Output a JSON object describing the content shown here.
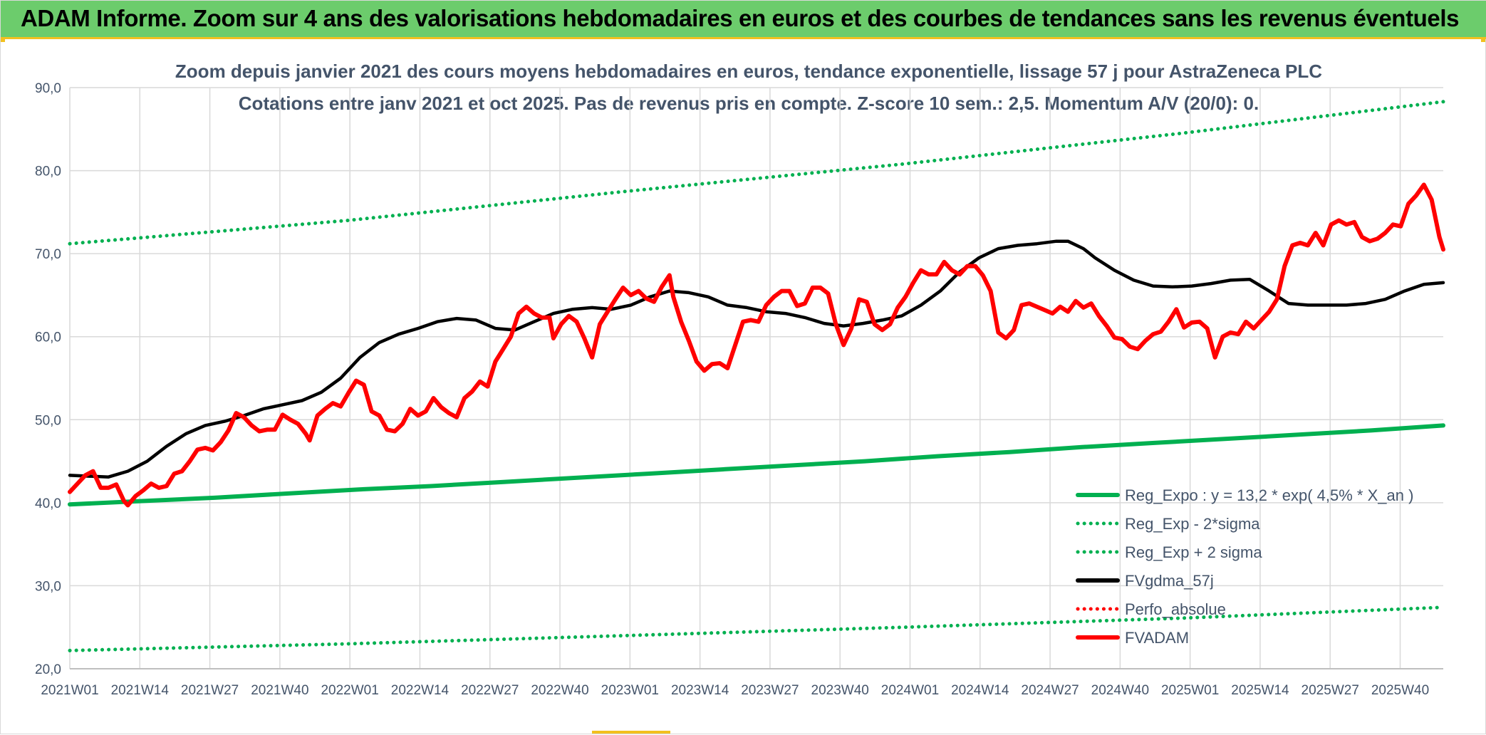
{
  "header": {
    "banner": "ADAM Informe. Zoom sur 4 ans des valorisations hebdomadaires en euros et des courbes de tendances sans les revenus éventuels"
  },
  "colors": {
    "banner_bg": "#6ccc6c",
    "accent": "#f2c01f",
    "trend_green": "#00b050",
    "price_red": "#ff0000",
    "smooth_black": "#000000",
    "text": "#44546a",
    "grid": "#d9d9d9"
  },
  "chart_data": {
    "type": "line",
    "title": "Zoom depuis janvier 2021 des cours moyens hebdomadaires en euros, tendance exponentielle, lissage 57 j pour AstraZeneca PLC",
    "subtitle": "Cotations entre janv 2021 et oct 2025. Pas de revenus pris en compte. Z-score 10 sem.: 2,5. Momentum A/V (20/0): 0.",
    "ylim": [
      20,
      90
    ],
    "ytick_labels": [
      "20,0",
      "30,0",
      "40,0",
      "50,0",
      "60,0",
      "70,0",
      "80,0",
      "90,0"
    ],
    "x_tick_labels": [
      "2021W01",
      "2021W14",
      "2021W27",
      "2021W40",
      "2022W01",
      "2022W14",
      "2022W27",
      "2022W40",
      "2023W01",
      "2023W14",
      "2023W27",
      "2023W40",
      "2024W01",
      "2024W14",
      "2024W27",
      "2024W40",
      "2025W01",
      "2025W14",
      "2025W27",
      "2025W40"
    ],
    "grid": true,
    "legend_position": "bottom-right",
    "series": [
      {
        "name": "Reg_Expo : y = 13,2 * exp( 4,5% *  X_an )",
        "color": "#00b050",
        "style": "solid",
        "knots": [
          [
            0,
            39.8
          ],
          [
            13,
            40.2
          ],
          [
            26,
            40.6
          ],
          [
            39,
            41.1
          ],
          [
            52,
            41.6
          ],
          [
            65,
            42.0
          ],
          [
            78,
            42.5
          ],
          [
            91,
            43.0
          ],
          [
            104,
            43.5
          ],
          [
            117,
            44.0
          ],
          [
            130,
            44.5
          ],
          [
            143,
            45.0
          ],
          [
            156,
            45.6
          ],
          [
            169,
            46.1
          ],
          [
            182,
            46.7
          ],
          [
            195,
            47.2
          ],
          [
            208,
            47.7
          ],
          [
            221,
            48.2
          ],
          [
            234,
            48.7
          ],
          [
            247,
            49.3
          ]
        ]
      },
      {
        "name": "Reg_Exp - 2*sigma",
        "color": "#00b050",
        "style": "dotted",
        "knots": [
          [
            0,
            22.2
          ],
          [
            50,
            23.0
          ],
          [
            100,
            24.0
          ],
          [
            150,
            25.0
          ],
          [
            200,
            26.1
          ],
          [
            247,
            27.4
          ]
        ]
      },
      {
        "name": "Reg_Exp + 2 sigma",
        "color": "#00b050",
        "style": "dotted",
        "knots": [
          [
            0,
            71.2
          ],
          [
            50,
            74.0
          ],
          [
            100,
            77.5
          ],
          [
            150,
            80.8
          ],
          [
            200,
            84.5
          ],
          [
            247,
            88.3
          ]
        ]
      },
      {
        "name": "FVgdma_57j",
        "color": "#000000",
        "style": "solid",
        "knots": [
          [
            0,
            43.3
          ],
          [
            5,
            43.2
          ],
          [
            10,
            43.1
          ],
          [
            15,
            43.8
          ],
          [
            20,
            45.0
          ],
          [
            25,
            46.8
          ],
          [
            30,
            48.3
          ],
          [
            35,
            49.3
          ],
          [
            40,
            49.8
          ],
          [
            45,
            50.5
          ],
          [
            50,
            51.3
          ],
          [
            55,
            51.8
          ],
          [
            60,
            52.3
          ],
          [
            65,
            53.3
          ],
          [
            70,
            55.0
          ],
          [
            75,
            57.5
          ],
          [
            80,
            59.3
          ],
          [
            85,
            60.3
          ],
          [
            90,
            61.0
          ],
          [
            95,
            61.8
          ],
          [
            100,
            62.2
          ],
          [
            105,
            62.0
          ],
          [
            110,
            61.0
          ],
          [
            115,
            60.8
          ],
          [
            120,
            61.8
          ],
          [
            125,
            62.8
          ],
          [
            130,
            63.3
          ],
          [
            135,
            63.5
          ],
          [
            140,
            63.3
          ],
          [
            145,
            63.8
          ],
          [
            150,
            64.8
          ],
          [
            155,
            65.5
          ],
          [
            160,
            65.3
          ],
          [
            165,
            64.8
          ],
          [
            170,
            63.8
          ],
          [
            175,
            63.5
          ],
          [
            180,
            63.0
          ],
          [
            185,
            62.8
          ],
          [
            190,
            62.3
          ],
          [
            195,
            61.6
          ],
          [
            200,
            61.3
          ],
          [
            205,
            61.6
          ],
          [
            210,
            62.0
          ],
          [
            215,
            62.5
          ],
          [
            220,
            63.8
          ],
          [
            225,
            65.5
          ],
          [
            230,
            67.8
          ],
          [
            235,
            69.5
          ],
          [
            240,
            70.6
          ],
          [
            245,
            71.0
          ],
          [
            250,
            71.2
          ],
          [
            255,
            71.5
          ],
          [
            258,
            71.5
          ],
          [
            262,
            70.6
          ],
          [
            265,
            69.5
          ],
          [
            270,
            68.0
          ],
          [
            275,
            66.8
          ],
          [
            280,
            66.1
          ],
          [
            285,
            66.0
          ],
          [
            290,
            66.1
          ],
          [
            295,
            66.4
          ],
          [
            300,
            66.8
          ],
          [
            305,
            66.9
          ],
          [
            310,
            65.5
          ],
          [
            315,
            64.0
          ],
          [
            320,
            63.8
          ],
          [
            325,
            63.8
          ],
          [
            330,
            63.8
          ],
          [
            335,
            64.0
          ],
          [
            340,
            64.5
          ],
          [
            345,
            65.5
          ],
          [
            350,
            66.3
          ],
          [
            355,
            66.5
          ]
        ]
      },
      {
        "name": "Perfo_absolue",
        "color": "#ff0000",
        "style": "dotted",
        "knots": []
      },
      {
        "name": "FVADAM",
        "color": "#ff0000",
        "style": "solid",
        "knots": [
          [
            0,
            41.3
          ],
          [
            2,
            42.3
          ],
          [
            4,
            43.3
          ],
          [
            6,
            43.8
          ],
          [
            8,
            41.8
          ],
          [
            10,
            41.8
          ],
          [
            12,
            42.2
          ],
          [
            14,
            40.2
          ],
          [
            15,
            39.7
          ],
          [
            17,
            40.8
          ],
          [
            19,
            41.5
          ],
          [
            21,
            42.3
          ],
          [
            23,
            41.8
          ],
          [
            25,
            42.0
          ],
          [
            27,
            43.5
          ],
          [
            29,
            43.8
          ],
          [
            31,
            45.0
          ],
          [
            33,
            46.4
          ],
          [
            35,
            46.6
          ],
          [
            37,
            46.3
          ],
          [
            39,
            47.3
          ],
          [
            41,
            48.7
          ],
          [
            43,
            50.8
          ],
          [
            45,
            50.3
          ],
          [
            47,
            49.3
          ],
          [
            49,
            48.6
          ],
          [
            51,
            48.8
          ],
          [
            53,
            48.8
          ],
          [
            55,
            50.6
          ],
          [
            57,
            50.0
          ],
          [
            59,
            49.5
          ],
          [
            61,
            48.3
          ],
          [
            62,
            47.5
          ],
          [
            64,
            50.5
          ],
          [
            66,
            51.3
          ],
          [
            68,
            52.0
          ],
          [
            70,
            51.6
          ],
          [
            72,
            53.2
          ],
          [
            74,
            54.7
          ],
          [
            76,
            54.2
          ],
          [
            78,
            51.0
          ],
          [
            80,
            50.5
          ],
          [
            82,
            48.8
          ],
          [
            84,
            48.6
          ],
          [
            86,
            49.5
          ],
          [
            88,
            51.3
          ],
          [
            90,
            50.5
          ],
          [
            92,
            51.0
          ],
          [
            94,
            52.6
          ],
          [
            96,
            51.5
          ],
          [
            98,
            50.8
          ],
          [
            100,
            50.3
          ],
          [
            102,
            52.6
          ],
          [
            104,
            53.4
          ],
          [
            106,
            54.6
          ],
          [
            108,
            54.0
          ],
          [
            110,
            57.0
          ],
          [
            112,
            58.5
          ],
          [
            114,
            60.0
          ],
          [
            116,
            62.8
          ],
          [
            118,
            63.6
          ],
          [
            120,
            62.8
          ],
          [
            122,
            62.3
          ],
          [
            124,
            62.3
          ],
          [
            125,
            59.8
          ],
          [
            127,
            61.5
          ],
          [
            129,
            62.5
          ],
          [
            131,
            61.8
          ],
          [
            133,
            59.8
          ],
          [
            135,
            57.5
          ],
          [
            137,
            61.5
          ],
          [
            139,
            63.0
          ],
          [
            141,
            64.5
          ],
          [
            143,
            65.9
          ],
          [
            145,
            65.0
          ],
          [
            147,
            65.5
          ],
          [
            149,
            64.6
          ],
          [
            151,
            64.2
          ],
          [
            153,
            66.0
          ],
          [
            155,
            67.4
          ],
          [
            156,
            64.8
          ],
          [
            158,
            61.8
          ],
          [
            160,
            59.5
          ],
          [
            162,
            57.0
          ],
          [
            164,
            55.9
          ],
          [
            166,
            56.7
          ],
          [
            168,
            56.8
          ],
          [
            170,
            56.2
          ],
          [
            172,
            59.0
          ],
          [
            174,
            61.8
          ],
          [
            176,
            62.0
          ],
          [
            178,
            61.8
          ],
          [
            180,
            63.8
          ],
          [
            182,
            64.8
          ],
          [
            184,
            65.5
          ],
          [
            186,
            65.5
          ],
          [
            188,
            63.7
          ],
          [
            190,
            64.0
          ],
          [
            192,
            65.9
          ],
          [
            194,
            65.9
          ],
          [
            196,
            65.2
          ],
          [
            198,
            61.5
          ],
          [
            200,
            59.0
          ],
          [
            202,
            61.0
          ],
          [
            204,
            64.5
          ],
          [
            206,
            64.2
          ],
          [
            208,
            61.5
          ],
          [
            210,
            60.8
          ],
          [
            212,
            61.5
          ],
          [
            214,
            63.5
          ],
          [
            216,
            64.8
          ],
          [
            218,
            66.5
          ],
          [
            220,
            68.0
          ],
          [
            222,
            67.5
          ],
          [
            224,
            67.5
          ],
          [
            226,
            69.0
          ],
          [
            228,
            68.0
          ],
          [
            230,
            67.5
          ],
          [
            232,
            68.5
          ],
          [
            234,
            68.5
          ],
          [
            236,
            67.4
          ],
          [
            238,
            65.5
          ],
          [
            240,
            60.5
          ],
          [
            242,
            59.8
          ],
          [
            244,
            60.8
          ],
          [
            246,
            63.8
          ],
          [
            248,
            64.0
          ],
          [
            250,
            63.6
          ],
          [
            252,
            63.2
          ],
          [
            254,
            62.8
          ],
          [
            256,
            63.6
          ],
          [
            258,
            63.0
          ],
          [
            260,
            64.3
          ],
          [
            262,
            63.5
          ],
          [
            264,
            64.0
          ],
          [
            266,
            62.5
          ],
          [
            268,
            61.3
          ],
          [
            270,
            59.9
          ],
          [
            272,
            59.7
          ],
          [
            274,
            58.8
          ],
          [
            276,
            58.5
          ],
          [
            278,
            59.5
          ],
          [
            280,
            60.3
          ],
          [
            282,
            60.6
          ],
          [
            284,
            61.8
          ],
          [
            286,
            63.3
          ],
          [
            288,
            61.1
          ],
          [
            290,
            61.7
          ],
          [
            292,
            61.8
          ],
          [
            294,
            61.0
          ],
          [
            296,
            57.5
          ],
          [
            298,
            60.0
          ],
          [
            300,
            60.5
          ],
          [
            302,
            60.3
          ],
          [
            304,
            61.8
          ],
          [
            306,
            61.0
          ],
          [
            308,
            62.0
          ],
          [
            310,
            63.0
          ],
          [
            312,
            64.5
          ],
          [
            314,
            68.5
          ],
          [
            316,
            71.0
          ],
          [
            318,
            71.3
          ],
          [
            320,
            71.0
          ],
          [
            322,
            72.5
          ],
          [
            324,
            71.0
          ],
          [
            326,
            73.5
          ],
          [
            328,
            74.0
          ],
          [
            330,
            73.5
          ],
          [
            332,
            73.8
          ],
          [
            334,
            72.0
          ],
          [
            336,
            71.5
          ],
          [
            338,
            71.8
          ],
          [
            340,
            72.5
          ],
          [
            342,
            73.5
          ],
          [
            344,
            73.3
          ],
          [
            346,
            76.0
          ],
          [
            348,
            77.0
          ],
          [
            350,
            78.3
          ],
          [
            352,
            76.5
          ],
          [
            354,
            72.0
          ],
          [
            355,
            70.5
          ]
        ]
      }
    ]
  }
}
